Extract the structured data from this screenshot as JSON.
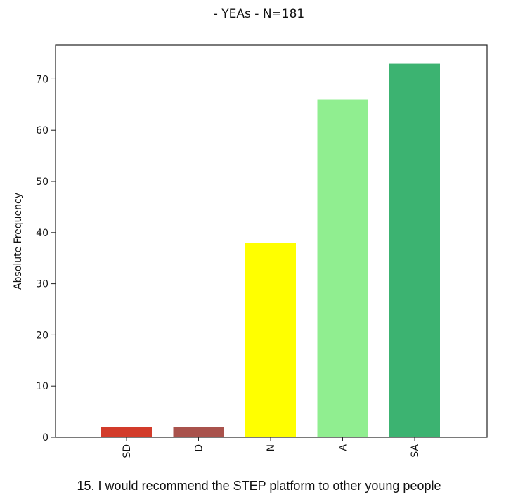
{
  "chart_data": {
    "type": "bar",
    "title": "- YEAs - N=181",
    "xlabel": "",
    "ylabel": "Absolute Frequency",
    "categories": [
      "SD",
      "D",
      "N",
      "A",
      "SA"
    ],
    "values": [
      2,
      2,
      38,
      66,
      73
    ],
    "colors": [
      "#d23b2a",
      "#a9524c",
      "#ffff00",
      "#90ee90",
      "#3cb371"
    ],
    "ylim": [
      0,
      76.65
    ],
    "yticks": [
      0,
      10,
      20,
      30,
      40,
      50,
      60,
      70
    ],
    "grid": false
  },
  "caption": "15.  I would recommend the STEP platform to other young people"
}
